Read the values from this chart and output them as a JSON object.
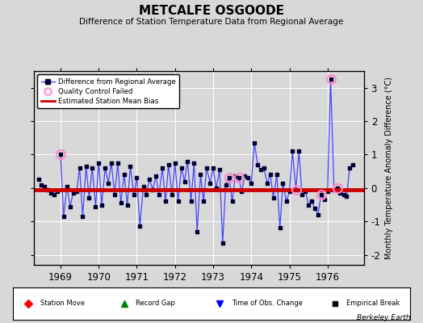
{
  "title": "METCALFE OSGOODE",
  "subtitle": "Difference of Station Temperature Data from Regional Average",
  "ylabel": "Monthly Temperature Anomaly Difference (°C)",
  "bias": -0.05,
  "xlim": [
    1968.3,
    1976.95
  ],
  "ylim": [
    -2.3,
    3.5
  ],
  "yticks": [
    -2,
    -1,
    0,
    1,
    2,
    3
  ],
  "xticks": [
    1969,
    1970,
    1971,
    1972,
    1973,
    1974,
    1975,
    1976
  ],
  "background_color": "#d8d8d8",
  "plot_bg": "#d8d8d8",
  "line_color": "#4444ff",
  "dot_color": "#000033",
  "bias_color": "#cc0000",
  "qc_color": "#ff88cc",
  "berkeley_earth_text": "Berkeley Earth",
  "data": [
    [
      1968.42,
      0.25
    ],
    [
      1968.5,
      0.1
    ],
    [
      1968.58,
      0.05
    ],
    [
      1968.67,
      -0.05
    ],
    [
      1968.75,
      -0.15
    ],
    [
      1968.83,
      -0.2
    ],
    [
      1968.92,
      -0.1
    ],
    [
      1969.0,
      1.0
    ],
    [
      1969.08,
      -0.85
    ],
    [
      1969.17,
      0.05
    ],
    [
      1969.25,
      -0.55
    ],
    [
      1969.33,
      -0.15
    ],
    [
      1969.42,
      -0.1
    ],
    [
      1969.5,
      0.6
    ],
    [
      1969.58,
      -0.85
    ],
    [
      1969.67,
      0.65
    ],
    [
      1969.75,
      -0.3
    ],
    [
      1969.83,
      0.6
    ],
    [
      1969.92,
      -0.55
    ],
    [
      1970.0,
      0.75
    ],
    [
      1970.08,
      -0.5
    ],
    [
      1970.17,
      0.6
    ],
    [
      1970.25,
      0.15
    ],
    [
      1970.33,
      0.75
    ],
    [
      1970.42,
      -0.2
    ],
    [
      1970.5,
      0.75
    ],
    [
      1970.58,
      -0.45
    ],
    [
      1970.67,
      0.4
    ],
    [
      1970.75,
      -0.5
    ],
    [
      1970.83,
      0.65
    ],
    [
      1970.92,
      -0.2
    ],
    [
      1971.0,
      0.3
    ],
    [
      1971.08,
      -1.15
    ],
    [
      1971.17,
      0.05
    ],
    [
      1971.25,
      -0.2
    ],
    [
      1971.33,
      0.25
    ],
    [
      1971.42,
      -0.05
    ],
    [
      1971.5,
      0.35
    ],
    [
      1971.58,
      -0.2
    ],
    [
      1971.67,
      0.6
    ],
    [
      1971.75,
      -0.4
    ],
    [
      1971.83,
      0.7
    ],
    [
      1971.92,
      -0.2
    ],
    [
      1972.0,
      0.75
    ],
    [
      1972.08,
      -0.4
    ],
    [
      1972.17,
      0.6
    ],
    [
      1972.25,
      0.2
    ],
    [
      1972.33,
      0.8
    ],
    [
      1972.42,
      -0.4
    ],
    [
      1972.5,
      0.75
    ],
    [
      1972.58,
      -1.3
    ],
    [
      1972.67,
      0.4
    ],
    [
      1972.75,
      -0.4
    ],
    [
      1972.83,
      0.6
    ],
    [
      1972.92,
      0.15
    ],
    [
      1973.0,
      0.6
    ],
    [
      1973.08,
      0.0
    ],
    [
      1973.17,
      0.55
    ],
    [
      1973.25,
      -1.65
    ],
    [
      1973.33,
      0.1
    ],
    [
      1973.42,
      0.3
    ],
    [
      1973.5,
      -0.4
    ],
    [
      1973.58,
      0.35
    ],
    [
      1973.67,
      0.3
    ],
    [
      1973.75,
      -0.1
    ],
    [
      1973.83,
      0.35
    ],
    [
      1973.92,
      0.3
    ],
    [
      1974.0,
      0.15
    ],
    [
      1974.08,
      1.35
    ],
    [
      1974.17,
      0.7
    ],
    [
      1974.25,
      0.55
    ],
    [
      1974.33,
      0.6
    ],
    [
      1974.42,
      0.15
    ],
    [
      1974.5,
      0.4
    ],
    [
      1974.58,
      -0.3
    ],
    [
      1974.67,
      0.4
    ],
    [
      1974.75,
      -1.2
    ],
    [
      1974.83,
      0.15
    ],
    [
      1974.92,
      -0.4
    ],
    [
      1975.0,
      -0.1
    ],
    [
      1975.08,
      1.1
    ],
    [
      1975.17,
      -0.05
    ],
    [
      1975.25,
      1.1
    ],
    [
      1975.33,
      -0.2
    ],
    [
      1975.42,
      -0.1
    ],
    [
      1975.5,
      -0.5
    ],
    [
      1975.58,
      -0.4
    ],
    [
      1975.67,
      -0.6
    ],
    [
      1975.75,
      -0.8
    ],
    [
      1975.83,
      -0.2
    ],
    [
      1975.92,
      -0.35
    ],
    [
      1976.0,
      -0.1
    ],
    [
      1976.08,
      3.25
    ],
    [
      1976.17,
      -0.05
    ],
    [
      1976.25,
      0.0
    ],
    [
      1976.33,
      -0.15
    ],
    [
      1976.42,
      -0.2
    ],
    [
      1976.5,
      -0.25
    ],
    [
      1976.58,
      0.6
    ],
    [
      1976.67,
      0.7
    ]
  ],
  "qc_points": [
    1969.0,
    1973.42,
    1973.67,
    1975.17,
    1975.83,
    1976.08,
    1976.25
  ]
}
